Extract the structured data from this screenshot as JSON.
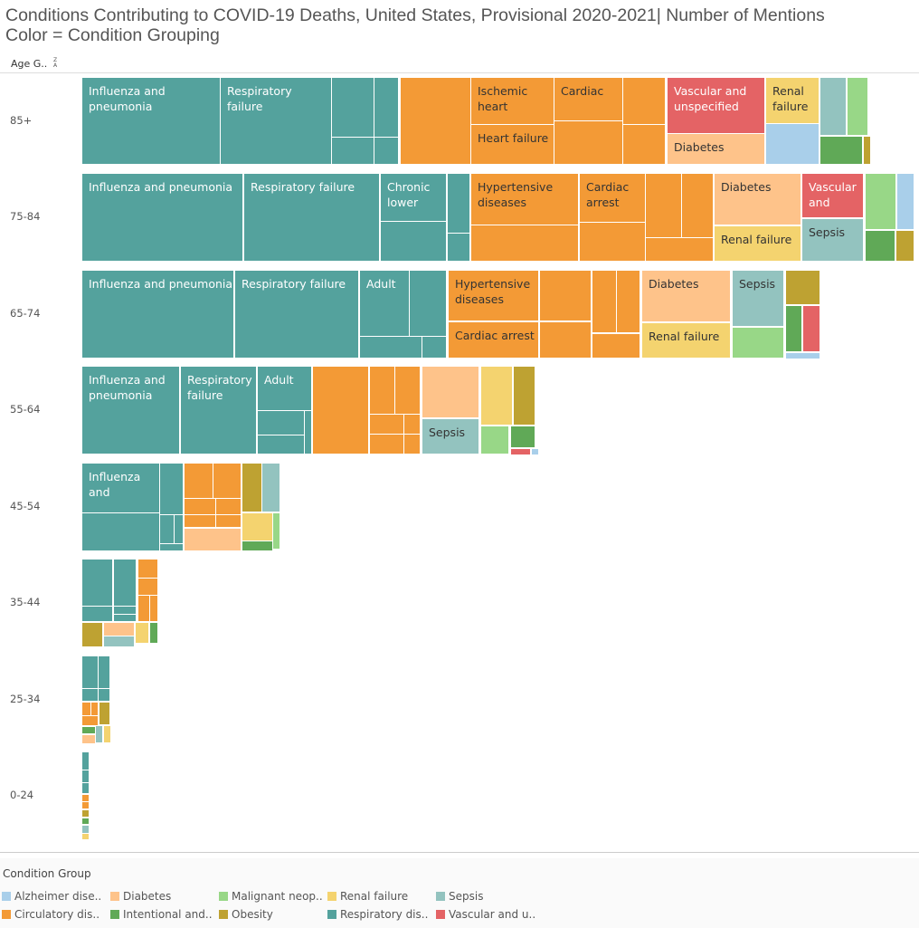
{
  "chart_data": {
    "type": "treemap",
    "title": "Conditions Contributing to COVID-19 Deaths, United States, Provisional 2020-2021| Number of Mentions",
    "subtitle": "Color = Condition Grouping",
    "row_axis_label": "Age G..",
    "legend_title": "Condition Group",
    "groups": [
      {
        "key": "A",
        "name": "Alzheimer dise..",
        "color": "#a9cfea"
      },
      {
        "key": "C",
        "name": "Circulatory dis..",
        "color": "#f39a36"
      },
      {
        "key": "D",
        "name": "Diabetes",
        "color": "#fec38a"
      },
      {
        "key": "I",
        "name": "Intentional and..",
        "color": "#60a957"
      },
      {
        "key": "M",
        "name": "Malignant neop..",
        "color": "#98d787"
      },
      {
        "key": "O",
        "name": "Obesity",
        "color": "#bea232"
      },
      {
        "key": "N",
        "name": "Renal failure",
        "color": "#f4d36f"
      },
      {
        "key": "R",
        "name": "Respiratory dis..",
        "color": "#54a29d"
      },
      {
        "key": "S",
        "name": "Sepsis",
        "color": "#93c3bf"
      },
      {
        "key": "V",
        "name": "Vascular and u..",
        "color": "#e46365"
      }
    ],
    "rows": [
      {
        "age": "85+",
        "labels": [
          "Influenza and pneumonia",
          "Respiratory failure",
          "Ischemic heart",
          "Heart failure",
          "Cardiac",
          "Vascular and unspecified",
          "Diabetes",
          "Renal failure"
        ]
      },
      {
        "age": "75-84",
        "labels": [
          "Influenza and pneumonia",
          "Respiratory failure",
          "Chronic lower",
          "Hypertensive diseases",
          "Cardiac arrest",
          "Diabetes",
          "Renal failure",
          "Vascular and",
          "Sepsis"
        ]
      },
      {
        "age": "65-74",
        "labels": [
          "Influenza and pneumonia",
          "Respiratory failure",
          "Adult",
          "Hypertensive diseases",
          "Cardiac arrest",
          "Diabetes",
          "Renal failure",
          "Sepsis"
        ]
      },
      {
        "age": "55-64",
        "labels": [
          "Influenza and pneumonia",
          "Respiratory failure",
          "Adult",
          "Sepsis"
        ]
      },
      {
        "age": "45-54",
        "labels": [
          "Influenza and"
        ]
      },
      {
        "age": "35-44",
        "labels": []
      },
      {
        "age": "25-34",
        "labels": []
      },
      {
        "age": "0-24",
        "labels": []
      }
    ]
  }
}
